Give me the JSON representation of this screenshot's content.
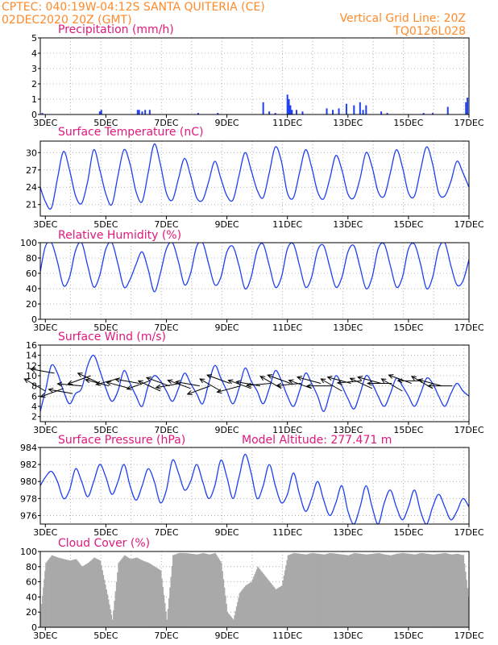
{
  "header": {
    "left_line1": "CPTEC:   040:19W-04:12S   SANTA QUITERIA (CE)",
    "left_line2": "02DEC2020 20Z (GMT)",
    "right_line1": "Vertical Grid Line: 20Z",
    "right_line2": "TQ0126L028"
  },
  "colors": {
    "header": "#ff8a2a",
    "title": "#e0187c",
    "series": "#1f3ff0",
    "cloud": "#a9a9a9",
    "grid": "#b0b0b0"
  },
  "x_axis": {
    "start_day": 2.8333,
    "end_day": 17.0,
    "tick_days": [
      3,
      5,
      7,
      9,
      11,
      13,
      15,
      17
    ],
    "tick_labels": [
      "3DEC",
      "5DEC",
      "7DEC",
      "9DEC",
      "11DEC",
      "13DEC",
      "15DEC",
      "17DEC"
    ]
  },
  "chart_data": [
    {
      "type": "bar",
      "title": "Precipitation (mm/h)",
      "ylim": [
        0,
        5
      ],
      "yticks": [
        0,
        1,
        2,
        3,
        4,
        5
      ],
      "x_days": [
        2.9,
        4.8,
        4.85,
        6.05,
        6.1,
        6.2,
        6.3,
        6.45,
        8.05,
        8.7,
        10.2,
        10.4,
        10.6,
        11.0,
        11.05,
        11.1,
        11.15,
        11.3,
        11.5,
        12.3,
        12.5,
        12.7,
        12.95,
        13.2,
        13.4,
        13.5,
        13.6,
        14.1,
        14.3,
        15.5,
        15.8,
        16.3,
        16.9,
        16.95
      ],
      "values": [
        0.1,
        0.2,
        0.3,
        0.3,
        0.3,
        0.2,
        0.3,
        0.3,
        0.1,
        0.1,
        0.8,
        0.2,
        0.1,
        1.3,
        1.0,
        0.6,
        0.3,
        0.3,
        0.2,
        0.4,
        0.3,
        0.4,
        0.7,
        0.6,
        0.8,
        0.3,
        0.6,
        0.2,
        0.1,
        0.1,
        0.1,
        0.5,
        0.8,
        1.1
      ]
    },
    {
      "type": "line",
      "title": "Surface Temperature (nC)",
      "ylim": [
        19,
        32
      ],
      "yticks": [
        21,
        24,
        27,
        30
      ],
      "x_days": [
        2.8333,
        3.0,
        3.2,
        3.4,
        3.6,
        3.8,
        4.0,
        4.2,
        4.4,
        4.6,
        4.8,
        5.0,
        5.2,
        5.4,
        5.6,
        5.8,
        6.0,
        6.2,
        6.4,
        6.6,
        6.8,
        7.0,
        7.2,
        7.4,
        7.6,
        7.8,
        8.0,
        8.2,
        8.4,
        8.6,
        8.8,
        9.0,
        9.2,
        9.4,
        9.6,
        9.8,
        10.0,
        10.2,
        10.4,
        10.6,
        10.8,
        11.0,
        11.2,
        11.4,
        11.6,
        11.8,
        12.0,
        12.2,
        12.4,
        12.6,
        12.8,
        13.0,
        13.2,
        13.4,
        13.6,
        13.8,
        14.0,
        14.2,
        14.4,
        14.6,
        14.8,
        15.0,
        15.2,
        15.4,
        15.6,
        15.8,
        16.0,
        16.2,
        16.4,
        16.6,
        16.8,
        17.0
      ],
      "values": [
        24.0,
        21.5,
        20.4,
        25.5,
        30.2,
        27.0,
        22.5,
        21.2,
        25.0,
        30.5,
        27.0,
        22.8,
        21.0,
        26.0,
        30.5,
        28.0,
        23.2,
        21.5,
        26.5,
        31.5,
        28.0,
        23.0,
        21.8,
        25.5,
        29.0,
        26.0,
        22.2,
        21.8,
        25.0,
        28.5,
        25.5,
        22.5,
        21.8,
        26.0,
        30.0,
        27.0,
        23.5,
        22.2,
        26.5,
        31.0,
        28.5,
        23.0,
        22.2,
        26.5,
        30.5,
        27.5,
        23.2,
        22.0,
        25.5,
        29.5,
        27.0,
        22.8,
        22.2,
        25.5,
        30.0,
        27.5,
        23.2,
        22.5,
        26.5,
        30.5,
        27.5,
        23.0,
        22.5,
        27.0,
        31.0,
        28.0,
        23.0,
        22.5,
        25.0,
        28.5,
        26.5,
        24.0
      ]
    },
    {
      "type": "line",
      "title": "Relative Humidity (%)",
      "ylim": [
        0,
        100
      ],
      "yticks": [
        0,
        20,
        40,
        60,
        80,
        100
      ],
      "x_days": [
        2.8333,
        3.0,
        3.2,
        3.4,
        3.6,
        3.8,
        4.0,
        4.2,
        4.4,
        4.6,
        4.8,
        5.0,
        5.2,
        5.4,
        5.6,
        5.8,
        6.0,
        6.2,
        6.4,
        6.6,
        6.8,
        7.0,
        7.2,
        7.4,
        7.6,
        7.8,
        8.0,
        8.2,
        8.4,
        8.6,
        8.8,
        9.0,
        9.2,
        9.4,
        9.6,
        9.8,
        10.0,
        10.2,
        10.4,
        10.6,
        10.8,
        11.0,
        11.2,
        11.4,
        11.6,
        11.8,
        12.0,
        12.2,
        12.4,
        12.6,
        12.8,
        13.0,
        13.2,
        13.4,
        13.6,
        13.8,
        14.0,
        14.2,
        14.4,
        14.6,
        14.8,
        15.0,
        15.2,
        15.4,
        15.6,
        15.8,
        16.0,
        16.2,
        16.4,
        16.6,
        16.8,
        17.0
      ],
      "values": [
        62,
        95,
        100,
        75,
        44,
        55,
        90,
        100,
        70,
        42,
        58,
        92,
        100,
        72,
        42,
        52,
        72,
        88,
        65,
        36,
        60,
        92,
        100,
        75,
        45,
        60,
        95,
        100,
        72,
        45,
        55,
        88,
        95,
        70,
        40,
        55,
        90,
        98,
        70,
        42,
        55,
        92,
        98,
        70,
        42,
        55,
        90,
        96,
        68,
        42,
        55,
        88,
        96,
        68,
        40,
        55,
        92,
        98,
        70,
        42,
        55,
        92,
        98,
        72,
        40,
        55,
        92,
        100,
        70,
        45,
        50,
        78
      ]
    },
    {
      "type": "line",
      "title": "Surface Wind (m/s)",
      "ylim": [
        1,
        16
      ],
      "yticks": [
        2,
        4,
        6,
        8,
        10,
        12,
        14,
        16
      ],
      "x_days": [
        2.8333,
        3.0,
        3.2,
        3.4,
        3.6,
        3.8,
        4.0,
        4.2,
        4.4,
        4.6,
        4.8,
        5.0,
        5.2,
        5.4,
        5.6,
        5.8,
        6.0,
        6.2,
        6.4,
        6.6,
        6.8,
        7.0,
        7.2,
        7.4,
        7.6,
        7.8,
        8.0,
        8.2,
        8.4,
        8.6,
        8.8,
        9.0,
        9.2,
        9.4,
        9.6,
        9.8,
        10.0,
        10.2,
        10.4,
        10.6,
        10.8,
        11.0,
        11.2,
        11.4,
        11.6,
        11.8,
        12.0,
        12.2,
        12.4,
        12.6,
        12.8,
        13.0,
        13.2,
        13.4,
        13.6,
        13.8,
        14.0,
        14.2,
        14.4,
        14.6,
        14.8,
        15.0,
        15.2,
        15.4,
        15.6,
        15.8,
        16.0,
        16.2,
        16.4,
        16.6,
        16.8,
        17.0
      ],
      "values": [
        3.0,
        7.0,
        12.0,
        10.5,
        7.0,
        4.5,
        6.5,
        7.5,
        12.0,
        14.0,
        11.0,
        7.5,
        5.0,
        7.0,
        11.0,
        8.5,
        6.0,
        4.0,
        8.0,
        10.0,
        9.0,
        7.0,
        5.0,
        7.5,
        10.5,
        8.5,
        6.5,
        4.5,
        8.5,
        12.0,
        9.5,
        7.0,
        4.5,
        7.5,
        11.5,
        9.0,
        7.0,
        4.5,
        7.5,
        11.0,
        9.0,
        6.0,
        4.0,
        7.0,
        10.5,
        8.5,
        6.0,
        3.0,
        6.5,
        10.0,
        8.0,
        5.5,
        3.5,
        6.5,
        10.0,
        8.5,
        6.0,
        4.0,
        6.5,
        9.5,
        8.0,
        6.0,
        4.0,
        6.5,
        9.5,
        8.5,
        6.0,
        4.0,
        6.5,
        8.5,
        7.0,
        6.0
      ],
      "arrow_days": [
        3.0,
        3.3,
        3.6,
        3.9,
        4.2,
        4.5,
        4.8,
        5.1,
        5.45,
        5.8,
        6.1,
        6.45,
        6.8,
        7.1,
        7.45,
        7.8,
        8.1,
        8.45,
        8.8,
        9.1,
        9.45,
        9.8,
        10.1,
        10.45,
        10.8,
        11.1,
        11.45,
        11.8,
        12.1,
        12.45,
        12.8,
        13.1,
        13.45,
        13.8,
        14.1,
        14.45,
        14.8,
        15.1,
        15.45,
        15.8,
        16.1,
        16.45
      ],
      "arrow_speeds": [
        7.0,
        10.5,
        7.5,
        6.5,
        8.0,
        10.0,
        8.5,
        8.0,
        9.5,
        7.5,
        8.5,
        9.0,
        7.0,
        8.0,
        8.5,
        7.5,
        8.0,
        8.0,
        7.0,
        8.5,
        8.0,
        7.5,
        8.0,
        8.5,
        7.5,
        8.5,
        8.5,
        7.5,
        8.5,
        8.0,
        7.0,
        8.5,
        9.0,
        7.5,
        8.5,
        8.5,
        7.0,
        8.5,
        9.0,
        7.5,
        8.0,
        8.0
      ],
      "arrow_dirs_deg": [
        150,
        170,
        200,
        170,
        175,
        200,
        155,
        165,
        195,
        165,
        170,
        200,
        155,
        160,
        190,
        160,
        170,
        200,
        150,
        160,
        195,
        160,
        170,
        185,
        150,
        160,
        185,
        160,
        165,
        180,
        150,
        165,
        185,
        155,
        165,
        180,
        150,
        160,
        180,
        150,
        165,
        180
      ]
    },
    {
      "type": "line",
      "title": "Surface Pressure (hPa)",
      "annotation": "Model Altitude: 277.471  m",
      "ylim": [
        975,
        984
      ],
      "yticks": [
        976,
        978,
        980,
        982,
        984
      ],
      "x_days": [
        2.8333,
        3.0,
        3.2,
        3.4,
        3.6,
        3.8,
        4.0,
        4.2,
        4.4,
        4.6,
        4.8,
        5.0,
        5.2,
        5.4,
        5.6,
        5.8,
        6.0,
        6.2,
        6.4,
        6.6,
        6.8,
        7.0,
        7.2,
        7.4,
        7.6,
        7.8,
        8.0,
        8.2,
        8.4,
        8.6,
        8.8,
        9.0,
        9.2,
        9.4,
        9.6,
        9.8,
        10.0,
        10.2,
        10.4,
        10.6,
        10.8,
        11.0,
        11.2,
        11.4,
        11.6,
        11.8,
        12.0,
        12.2,
        12.4,
        12.6,
        12.8,
        13.0,
        13.2,
        13.4,
        13.6,
        13.8,
        14.0,
        14.2,
        14.4,
        14.6,
        14.8,
        15.0,
        15.2,
        15.4,
        15.6,
        15.8,
        16.0,
        16.2,
        16.4,
        16.6,
        16.8,
        17.0
      ],
      "values": [
        979.5,
        980.5,
        981.2,
        980.0,
        978.0,
        979.0,
        981.5,
        980.0,
        978.2,
        980.0,
        982.0,
        980.5,
        978.5,
        980.0,
        982.0,
        979.5,
        977.8,
        979.5,
        981.5,
        980.0,
        977.5,
        979.0,
        982.5,
        981.0,
        979.0,
        980.0,
        982.0,
        980.0,
        978.0,
        979.5,
        982.5,
        980.5,
        978.0,
        980.5,
        983.2,
        981.0,
        978.0,
        979.5,
        982.0,
        979.5,
        977.5,
        978.5,
        981.0,
        978.5,
        976.5,
        978.0,
        980.0,
        977.8,
        976.0,
        977.5,
        979.5,
        976.5,
        975.0,
        977.0,
        979.5,
        977.0,
        975.0,
        977.5,
        979.0,
        977.0,
        975.5,
        977.0,
        979.0,
        976.5,
        975.0,
        977.0,
        978.5,
        977.0,
        975.5,
        976.5,
        978.0,
        977.0
      ]
    },
    {
      "type": "bar",
      "title": "Cloud Cover (%)",
      "ylim": [
        0,
        100
      ],
      "yticks": [
        0,
        20,
        40,
        60,
        80,
        100
      ],
      "x_days": [
        2.8333,
        3.0,
        3.2,
        3.4,
        3.6,
        3.8,
        4.0,
        4.2,
        4.4,
        4.6,
        4.8,
        5.0,
        5.2,
        5.4,
        5.6,
        5.8,
        6.0,
        6.2,
        6.4,
        6.6,
        6.8,
        7.0,
        7.2,
        7.4,
        7.6,
        7.8,
        8.0,
        8.2,
        8.4,
        8.6,
        8.8,
        9.0,
        9.2,
        9.4,
        9.6,
        9.8,
        10.0,
        10.2,
        10.4,
        10.6,
        10.8,
        11.0,
        11.2,
        11.4,
        11.6,
        11.8,
        12.0,
        12.2,
        12.4,
        12.6,
        12.8,
        13.0,
        13.2,
        13.4,
        13.6,
        13.8,
        14.0,
        14.2,
        14.4,
        14.6,
        14.8,
        15.0,
        15.2,
        15.4,
        15.6,
        15.8,
        16.0,
        16.2,
        16.4,
        16.6,
        16.8,
        17.0
      ],
      "values": [
        20,
        85,
        95,
        92,
        90,
        88,
        90,
        80,
        85,
        92,
        88,
        50,
        10,
        85,
        95,
        90,
        92,
        88,
        85,
        80,
        75,
        10,
        95,
        98,
        98,
        97,
        96,
        98,
        96,
        98,
        85,
        20,
        10,
        45,
        55,
        60,
        80,
        70,
        60,
        50,
        55,
        95,
        98,
        97,
        96,
        98,
        97,
        96,
        98,
        97,
        96,
        95,
        98,
        97,
        96,
        97,
        98,
        96,
        95,
        97,
        98,
        97,
        96,
        98,
        97,
        96,
        97,
        98,
        96,
        97,
        95,
        30
      ]
    }
  ]
}
